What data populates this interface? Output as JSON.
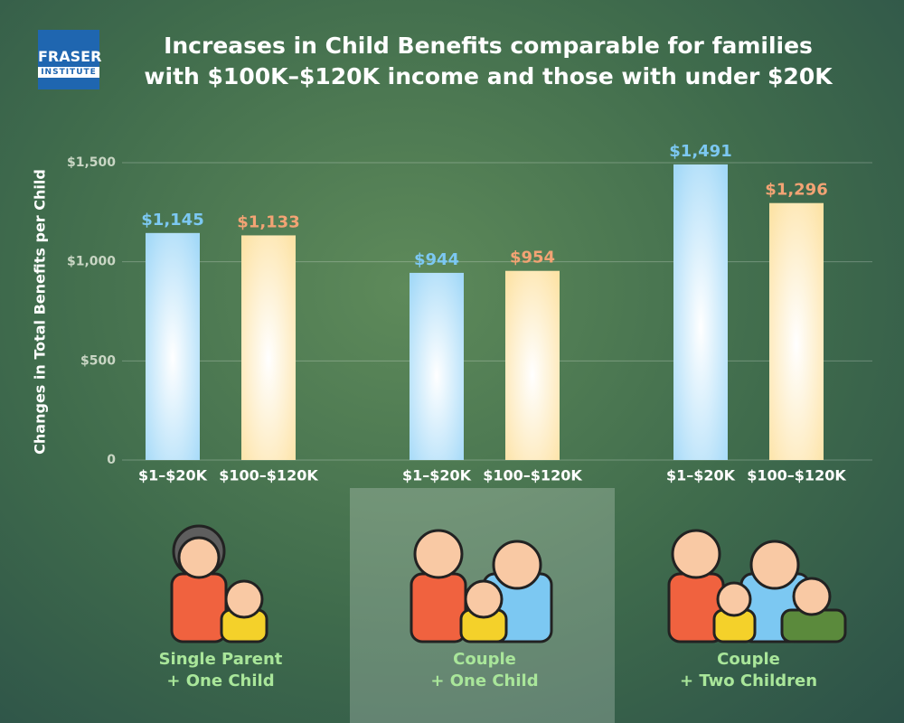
{
  "logo": {
    "name": "FRASER",
    "sub": "INSTITUTE"
  },
  "chart_data": {
    "type": "bar",
    "title": "Increases in Child Benefits comparable for families\nwith $100K–$120K income and those with under $20K",
    "y_label": "Changes in Total Benefits per Child",
    "categories": [
      "Single Parent\n+ One Child",
      "Couple\n+ One Child",
      "Couple\n+ Two Children"
    ],
    "series": [
      {
        "name": "$1–$20K",
        "color": "#a3d9f8",
        "label_color": "#7cc8f2",
        "values": [
          1145,
          944,
          1491
        ],
        "value_labels": [
          "$1,145",
          "$944",
          "$1,491"
        ]
      },
      {
        "name": "$100–$120K",
        "color": "#fde3a6",
        "label_color": "#f3a374",
        "values": [
          1133,
          954,
          1296
        ],
        "value_labels": [
          "$1,133",
          "$954",
          "$1,296"
        ]
      }
    ],
    "ylim": [
      0,
      1600
    ],
    "yticks": [
      0,
      {
        "value": 500,
        "label": "$500"
      },
      {
        "value": 1000,
        "label": "$1,000"
      },
      {
        "value": 1500,
        "label": "$1,500"
      }
    ],
    "grid": true
  }
}
